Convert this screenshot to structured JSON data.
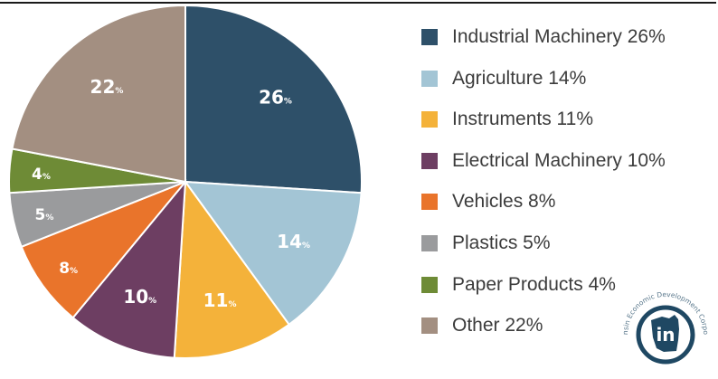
{
  "chart_data": {
    "type": "pie",
    "slices": [
      {
        "label": "Industrial Machinery",
        "value": 26,
        "display": "26",
        "color": "#2e5069"
      },
      {
        "label": "Agriculture",
        "value": 14,
        "display": "14",
        "color": "#a3c5d5"
      },
      {
        "label": "Instruments",
        "value": 11,
        "display": "11",
        "color": "#f4b23a"
      },
      {
        "label": "Electrical Machinery",
        "value": 10,
        "display": "10",
        "color": "#6d3e62"
      },
      {
        "label": "Vehicles",
        "value": 8,
        "display": "8",
        "color": "#e9742b"
      },
      {
        "label": "Plastics",
        "value": 5,
        "display": "5",
        "color": "#9a9b9d"
      },
      {
        "label": "Paper Products",
        "value": 4,
        "display": "4",
        "color": "#6e8b36"
      },
      {
        "label": "Other",
        "value": 22,
        "display": "22",
        "color": "#a38f81"
      }
    ],
    "percent_sign": "%",
    "legend": [
      {
        "text": "Industrial Machinery 26%",
        "color": "#2e5069"
      },
      {
        "text": "Agriculture 14%",
        "color": "#a3c5d5"
      },
      {
        "text": "Instruments 11%",
        "color": "#f4b23a"
      },
      {
        "text": "Electrical Machinery 10%",
        "color": "#6d3e62"
      },
      {
        "text": "Vehicles 8%",
        "color": "#e9742b"
      },
      {
        "text": "Plastics 5%",
        "color": "#9a9b9d"
      },
      {
        "text": "Paper Products 4%",
        "color": "#6e8b36"
      },
      {
        "text": "Other 22%",
        "color": "#a38f81"
      }
    ],
    "legend_position": "right"
  },
  "logo": {
    "mark": "in",
    "ring_text": "Wisconsin Economic Development Corporation",
    "color": "#1f4863"
  }
}
